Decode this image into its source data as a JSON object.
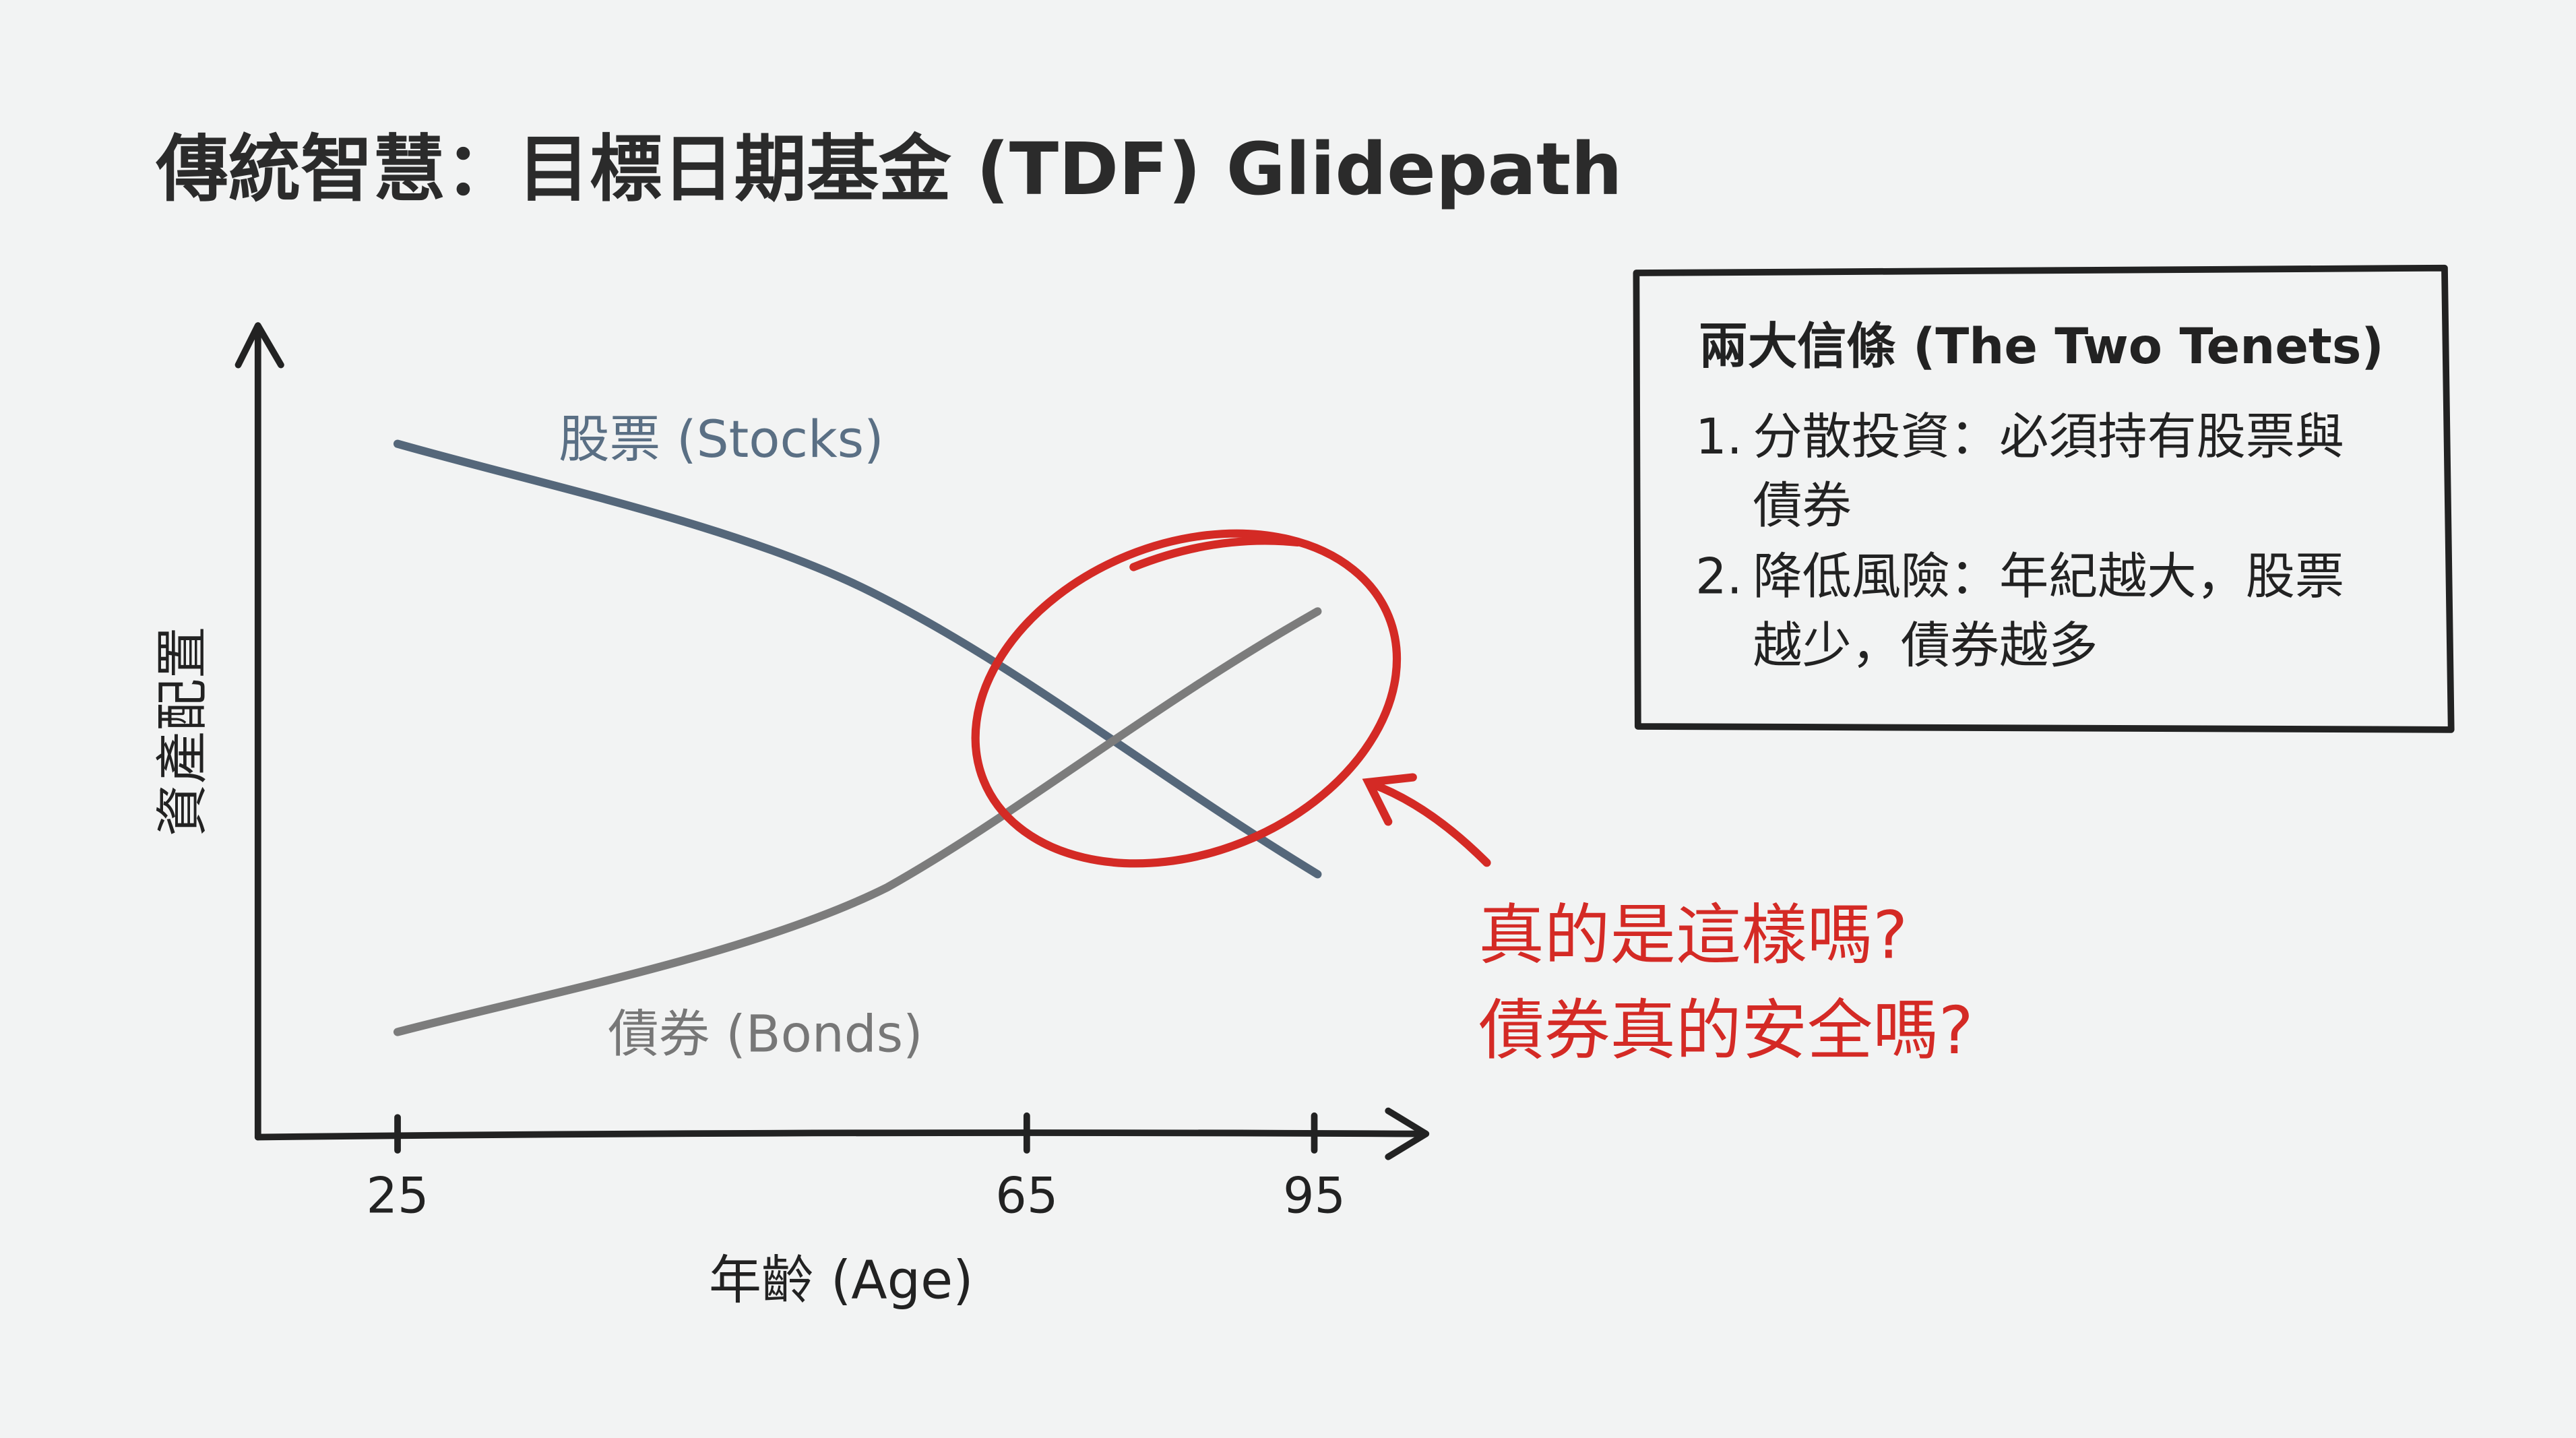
{
  "title": "傳統智慧：目標日期基金 (TDF) Glidepath",
  "chart": {
    "y_axis_label": "資產配置",
    "x_axis_label": "年齡 (Age)",
    "x_ticks": [
      "25",
      "65",
      "95"
    ],
    "stocks_label": "股票 (Stocks)",
    "bonds_label": "債券 (Bonds)"
  },
  "annotation": {
    "lines": [
      "真的是這樣嗎?",
      "債券真的安全嗎?"
    ]
  },
  "tenets": {
    "title": "兩大信條 (The Two Tenets)",
    "items": [
      {
        "number": "1.",
        "lines": [
          "分散投資：必須持有股票與",
          "債券"
        ]
      },
      {
        "number": "2.",
        "lines": [
          "降低風險：年紀越大，股票",
          "越少，債券越多"
        ]
      }
    ]
  }
}
